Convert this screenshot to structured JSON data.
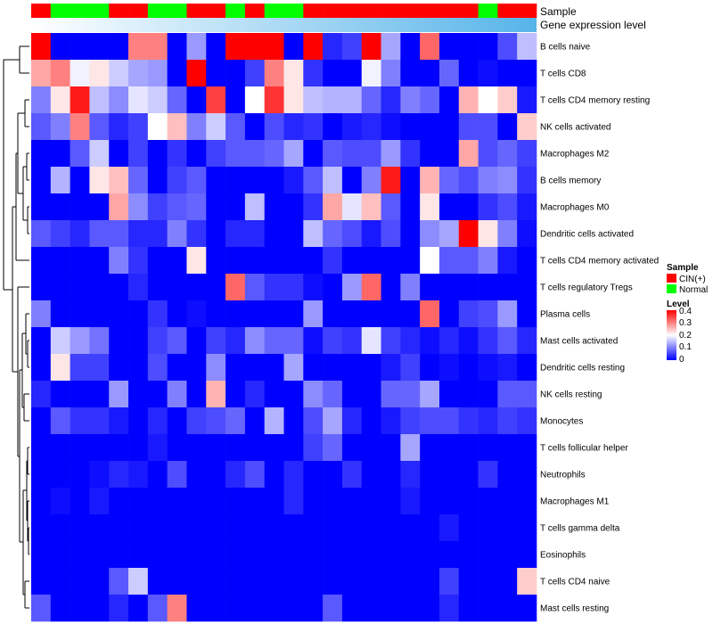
{
  "chart_data": {
    "type": "heatmap",
    "title": "",
    "annotation_tracks": [
      "Sample",
      "Gene expression level"
    ],
    "sample_groups": [
      "CIN(+)",
      "Normal",
      "Normal",
      "Normal",
      "CIN(+)",
      "CIN(+)",
      "Normal",
      "Normal",
      "CIN(+)",
      "CIN(+)",
      "Normal",
      "CIN(+)",
      "Normal",
      "Normal",
      "CIN(+)",
      "CIN(+)",
      "CIN(+)",
      "CIN(+)",
      "CIN(+)",
      "CIN(+)",
      "CIN(+)",
      "CIN(+)",
      "CIN(+)",
      "Normal",
      "CIN(+)",
      "CIN(+)"
    ],
    "row_labels": [
      "B cells naive",
      "T cells CD8",
      "T cells CD4 memory resting",
      "NK cells activated",
      "Macrophages M2",
      "B cells memory",
      "Macrophages M0",
      "Dendritic cells activated",
      "T cells CD4 memory activated",
      "T cells regulatory  Tregs",
      "Plasma cells",
      "Mast cells activated",
      "Dendritic cells resting",
      "NK cells resting",
      "Monocytes",
      "T cells follicular helper",
      "Neutrophils",
      "Macrophages M1",
      "T cells gamma delta",
      "Eosinophils",
      "T cells CD4 naive",
      "Mast cells resting"
    ],
    "values": [
      [
        0.4,
        0.0,
        0.0,
        0.0,
        0.0,
        0.3,
        0.3,
        0.0,
        0.12,
        0.0,
        0.4,
        0.4,
        0.4,
        0.0,
        0.4,
        0.03,
        0.05,
        0.4,
        0.13,
        0.0,
        0.32,
        0.0,
        0.0,
        0.0,
        0.06,
        0.15
      ],
      [
        0.27,
        0.3,
        0.19,
        0.22,
        0.16,
        0.13,
        0.12,
        0.0,
        0.42,
        0.0,
        0.0,
        0.05,
        0.3,
        0.22,
        0.04,
        0.0,
        0.0,
        0.19,
        0.1,
        0.0,
        0.0,
        0.08,
        0.0,
        0.01,
        0.0,
        0.0
      ],
      [
        0.1,
        0.22,
        0.38,
        0.15,
        0.11,
        0.18,
        0.16,
        0.08,
        0.0,
        0.35,
        0.0,
        0.2,
        0.36,
        0.22,
        0.15,
        0.14,
        0.14,
        0.08,
        0.03,
        0.1,
        0.08,
        0.0,
        0.26,
        0.2,
        0.24,
        0.02
      ],
      [
        0.07,
        0.1,
        0.3,
        0.07,
        0.03,
        0.05,
        0.2,
        0.25,
        0.1,
        0.16,
        0.07,
        0.0,
        0.06,
        0.03,
        0.04,
        0.0,
        0.02,
        0.03,
        0.01,
        0.0,
        0.0,
        0.0,
        0.06,
        0.06,
        0.0,
        0.24
      ],
      [
        0.0,
        0.0,
        0.07,
        0.16,
        0.0,
        0.05,
        0.0,
        0.04,
        0.0,
        0.05,
        0.07,
        0.07,
        0.08,
        0.13,
        0.0,
        0.07,
        0.06,
        0.06,
        0.12,
        0.04,
        0.0,
        0.0,
        0.27,
        0.06,
        0.08,
        0.05
      ],
      [
        0.0,
        0.14,
        0.0,
        0.22,
        0.25,
        0.08,
        0.0,
        0.05,
        0.07,
        0.0,
        0.0,
        0.0,
        0.0,
        0.02,
        0.07,
        0.15,
        0.0,
        0.1,
        0.38,
        0.0,
        0.26,
        0.08,
        0.06,
        0.1,
        0.11,
        0.04
      ],
      [
        0.0,
        0.0,
        0.0,
        0.0,
        0.27,
        0.11,
        0.05,
        0.07,
        0.08,
        0.0,
        0.0,
        0.15,
        0.0,
        0.0,
        0.04,
        0.27,
        0.18,
        0.25,
        0.07,
        0.0,
        0.22,
        0.0,
        0.0,
        0.04,
        0.06,
        0.02
      ],
      [
        0.07,
        0.05,
        0.03,
        0.07,
        0.07,
        0.03,
        0.03,
        0.1,
        0.04,
        0.0,
        0.03,
        0.03,
        0.0,
        0.0,
        0.15,
        0.08,
        0.06,
        0.02,
        0.06,
        0.0,
        0.11,
        0.13,
        0.44,
        0.22,
        0.1,
        0.01
      ],
      [
        0.0,
        0.0,
        0.0,
        0.0,
        0.1,
        0.04,
        0.0,
        0.0,
        0.22,
        0.0,
        0.0,
        0.0,
        0.0,
        0.0,
        0.0,
        0.04,
        0.0,
        0.0,
        0.0,
        0.0,
        0.2,
        0.07,
        0.07,
        0.1,
        0.02,
        0.0
      ],
      [
        0.0,
        0.0,
        0.0,
        0.0,
        0.0,
        0.03,
        0.0,
        0.0,
        0.0,
        0.0,
        0.32,
        0.07,
        0.04,
        0.04,
        0.01,
        0.0,
        0.12,
        0.32,
        0.0,
        0.1,
        0.0,
        0.0,
        0.0,
        0.0,
        0.0,
        0.0
      ],
      [
        0.1,
        0.0,
        0.0,
        0.0,
        0.0,
        0.0,
        0.04,
        0.0,
        0.01,
        0.0,
        0.0,
        0.0,
        0.0,
        0.0,
        0.12,
        0.0,
        0.0,
        0.0,
        0.0,
        0.0,
        0.32,
        0.0,
        0.05,
        0.06,
        0.12,
        0.0
      ],
      [
        0.0,
        0.16,
        0.12,
        0.09,
        0.0,
        0.0,
        0.05,
        0.07,
        0.0,
        0.05,
        0.03,
        0.11,
        0.08,
        0.08,
        0.01,
        0.05,
        0.04,
        0.18,
        0.05,
        0.03,
        0.01,
        0.03,
        0.01,
        0.04,
        0.07,
        0.03
      ],
      [
        0.0,
        0.22,
        0.05,
        0.05,
        0.0,
        0.0,
        0.06,
        0.0,
        0.0,
        0.11,
        0.0,
        0.0,
        0.0,
        0.13,
        0.0,
        0.0,
        0.0,
        0.0,
        0.02,
        0.05,
        0.0,
        0.01,
        0.0,
        0.01,
        0.02,
        0.0
      ],
      [
        0.03,
        0.0,
        0.0,
        0.0,
        0.12,
        0.0,
        0.0,
        0.1,
        0.0,
        0.26,
        0.0,
        0.03,
        0.0,
        0.0,
        0.11,
        0.08,
        0.0,
        0.0,
        0.08,
        0.08,
        0.13,
        0.0,
        0.0,
        0.0,
        0.07,
        0.07
      ],
      [
        0.0,
        0.07,
        0.04,
        0.04,
        0.02,
        0.0,
        0.03,
        0.0,
        0.05,
        0.06,
        0.08,
        0.0,
        0.14,
        0.0,
        0.06,
        0.13,
        0.03,
        0.0,
        0.02,
        0.05,
        0.06,
        0.06,
        0.04,
        0.03,
        0.05,
        0.04
      ],
      [
        0.0,
        0.0,
        0.0,
        0.0,
        0.0,
        0.0,
        0.02,
        0.0,
        0.0,
        0.0,
        0.0,
        0.0,
        0.0,
        0.0,
        0.05,
        0.08,
        0.0,
        0.0,
        0.0,
        0.13,
        0.0,
        0.0,
        0.0,
        0.0,
        0.0,
        0.0
      ],
      [
        0.0,
        0.0,
        0.0,
        0.01,
        0.03,
        0.02,
        0.0,
        0.06,
        0.0,
        0.0,
        0.03,
        0.06,
        0.0,
        0.03,
        0.0,
        0.0,
        0.04,
        0.0,
        0.0,
        0.03,
        0.0,
        0.0,
        0.0,
        0.04,
        0.0,
        0.0
      ],
      [
        0.0,
        0.01,
        0.0,
        0.02,
        0.0,
        0.0,
        0.0,
        0.0,
        0.0,
        0.0,
        0.0,
        0.0,
        0.0,
        0.03,
        0.0,
        0.0,
        0.0,
        0.0,
        0.0,
        0.02,
        0.0,
        0.0,
        0.0,
        0.0,
        0.0,
        0.0
      ],
      [
        0.0,
        0.0,
        0.0,
        0.0,
        0.0,
        0.0,
        0.0,
        0.0,
        0.0,
        0.0,
        0.0,
        0.0,
        0.0,
        0.0,
        0.0,
        0.0,
        0.0,
        0.0,
        0.0,
        0.0,
        0.0,
        0.02,
        0.0,
        0.0,
        0.0,
        0.0
      ],
      [
        0.0,
        0.0,
        0.0,
        0.0,
        0.0,
        0.0,
        0.0,
        0.0,
        0.0,
        0.0,
        0.0,
        0.0,
        0.0,
        0.0,
        0.0,
        0.0,
        0.0,
        0.0,
        0.0,
        0.0,
        0.0,
        0.0,
        0.0,
        0.0,
        0.0,
        0.0
      ],
      [
        0.0,
        0.0,
        0.0,
        0.0,
        0.07,
        0.16,
        0.0,
        0.0,
        0.0,
        0.0,
        0.0,
        0.0,
        0.0,
        0.0,
        0.0,
        0.0,
        0.0,
        0.0,
        0.0,
        0.0,
        0.0,
        0.05,
        0.0,
        0.0,
        0.0,
        0.24
      ],
      [
        0.07,
        0.0,
        0.0,
        0.0,
        0.03,
        0.0,
        0.07,
        0.3,
        0.0,
        0.0,
        0.0,
        0.0,
        0.0,
        0.0,
        0.0,
        0.07,
        0.0,
        0.0,
        0.0,
        0.0,
        0.0,
        0.03,
        0.0,
        0.0,
        0.0,
        0.0
      ]
    ],
    "color_scale": {
      "min": 0,
      "max": 0.4,
      "low": "#0000FF",
      "mid": "#FFFFFF",
      "high": "#FF0000",
      "mid_value": 0.2
    },
    "legend": {
      "sample": {
        "title": "Sample",
        "entries": [
          {
            "label": "CIN(+)",
            "color": "#FF0000"
          },
          {
            "label": "Normal",
            "color": "#00FF00"
          }
        ]
      },
      "level": {
        "title": "Level",
        "ticks": [
          "0.4",
          "0.3",
          "0.2",
          "0.1",
          "0"
        ]
      }
    },
    "gene_expression_colors": {
      "left": "#FFFFFF",
      "right": "#56B4E9"
    },
    "row_clustering": true,
    "column_clustering": false
  }
}
